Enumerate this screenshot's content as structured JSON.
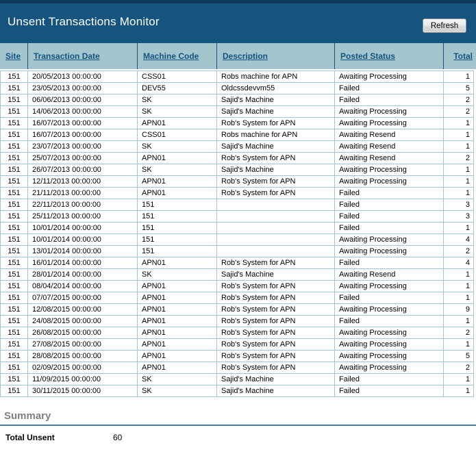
{
  "header": {
    "title": "Unsent Transactions Monitor",
    "refresh_button": "Refresh"
  },
  "table": {
    "columns": [
      {
        "key": "site",
        "label": "Site"
      },
      {
        "key": "date",
        "label": "Transaction Date"
      },
      {
        "key": "machine",
        "label": "Machine Code"
      },
      {
        "key": "description",
        "label": "Description"
      },
      {
        "key": "status",
        "label": "Posted Status"
      },
      {
        "key": "total",
        "label": "Total"
      }
    ],
    "rows": [
      [
        "151",
        "20/05/2013 00:00:00",
        "CSS01",
        "Robs machine for APN",
        "Awaiting Processing",
        "1"
      ],
      [
        "151",
        "23/05/2013 00:00:00",
        "DEV55",
        "Oldcssdevvm55",
        "Failed",
        "5"
      ],
      [
        "151",
        "06/06/2013 00:00:00",
        "SK",
        "Sajid's Machine",
        "Failed",
        "2"
      ],
      [
        "151",
        "14/06/2013 00:00:00",
        "SK",
        "Sajid's Machine",
        "Awaiting Processing",
        "2"
      ],
      [
        "151",
        "16/07/2013 00:00:00",
        "APN01",
        "Rob's System for APN",
        "Awaiting Processing",
        "1"
      ],
      [
        "151",
        "16/07/2013 00:00:00",
        "CSS01",
        "Robs machine for APN",
        "Awaiting Resend",
        "1"
      ],
      [
        "151",
        "23/07/2013 00:00:00",
        "SK",
        "Sajid's Machine",
        "Awaiting Resend",
        "1"
      ],
      [
        "151",
        "25/07/2013 00:00:00",
        "APN01",
        "Rob's System for APN",
        "Awaiting Resend",
        "2"
      ],
      [
        "151",
        "26/07/2013 00:00:00",
        "SK",
        "Sajid's Machine",
        "Awaiting Processing",
        "1"
      ],
      [
        "151",
        "12/11/2013 00:00:00",
        "APN01",
        "Rob's System for APN",
        "Awaiting Processing",
        "1"
      ],
      [
        "151",
        "21/11/2013 00:00:00",
        "APN01",
        "Rob's System for APN",
        "Failed",
        "1"
      ],
      [
        "151",
        "22/11/2013 00:00:00",
        "151",
        "",
        "Failed",
        "3"
      ],
      [
        "151",
        "25/11/2013 00:00:00",
        "151",
        "",
        "Failed",
        "3"
      ],
      [
        "151",
        "10/01/2014 00:00:00",
        "151",
        "",
        "Failed",
        "1"
      ],
      [
        "151",
        "10/01/2014 00:00:00",
        "151",
        "",
        "Awaiting Processing",
        "4"
      ],
      [
        "151",
        "13/01/2014 00:00:00",
        "151",
        "",
        "Awaiting Processing",
        "2"
      ],
      [
        "151",
        "16/01/2014 00:00:00",
        "APN01",
        "Rob's System for APN",
        "Failed",
        "4"
      ],
      [
        "151",
        "28/01/2014 00:00:00",
        "SK",
        "Sajid's Machine",
        "Awaiting Resend",
        "1"
      ],
      [
        "151",
        "08/04/2014 00:00:00",
        "APN01",
        "Rob's System for APN",
        "Awaiting Processing",
        "1"
      ],
      [
        "151",
        "07/07/2015 00:00:00",
        "APN01",
        "Rob's System for APN",
        "Failed",
        "1"
      ],
      [
        "151",
        "12/08/2015 00:00:00",
        "APN01",
        "Rob's System for APN",
        "Awaiting Processing",
        "9"
      ],
      [
        "151",
        "24/08/2015 00:00:00",
        "APN01",
        "Rob's System for APN",
        "Failed",
        "1"
      ],
      [
        "151",
        "26/08/2015 00:00:00",
        "APN01",
        "Rob's System for APN",
        "Awaiting Processing",
        "2"
      ],
      [
        "151",
        "27/08/2015 00:00:00",
        "APN01",
        "Rob's System for APN",
        "Awaiting Processing",
        "1"
      ],
      [
        "151",
        "28/08/2015 00:00:00",
        "APN01",
        "Rob's System for APN",
        "Awaiting Processing",
        "5"
      ],
      [
        "151",
        "02/09/2015 00:00:00",
        "APN01",
        "Rob's System for APN",
        "Awaiting Processing",
        "2"
      ],
      [
        "151",
        "11/09/2015 00:00:00",
        "SK",
        "Sajid's Machine",
        "Failed",
        "1"
      ],
      [
        "151",
        "30/11/2015 00:00:00",
        "SK",
        "Sajid's Machine",
        "Failed",
        "1"
      ]
    ]
  },
  "summary": {
    "heading": "Summary",
    "total_unsent_label": "Total Unsent",
    "total_unsent_value": "60"
  },
  "colors": {
    "header_bg": "#15547f",
    "header_top_strip": "#0d3a59",
    "table_header_bg": "#a3c5cd",
    "column_link": "#14537e",
    "grid_border": "#9dc6d8",
    "summary_rule": "#477e9e",
    "summary_heading_text": "#7f7f7f"
  }
}
